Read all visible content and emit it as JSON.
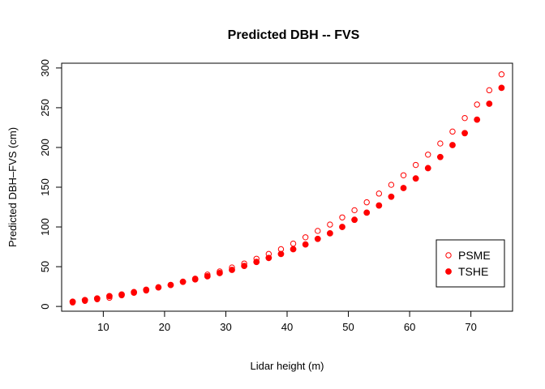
{
  "chart_data": {
    "type": "scatter",
    "title": "Predicted DBH -- FVS",
    "xlabel": "Lidar height (m)",
    "ylabel": "Predicted DBH–FVS (cm)",
    "xlim": [
      3.2,
      76.8
    ],
    "ylim": [
      -6,
      306
    ],
    "xticks": [
      10,
      20,
      30,
      40,
      50,
      60,
      70
    ],
    "yticks": [
      0,
      50,
      100,
      150,
      200,
      250,
      300
    ],
    "grid": false,
    "legend_position": "bottom-right",
    "series": [
      {
        "name": "PSME",
        "marker": "open-circle",
        "color": "#ff0000",
        "x": [
          5,
          7,
          9,
          11,
          13,
          15,
          17,
          19,
          21,
          23,
          25,
          27,
          29,
          31,
          33,
          35,
          37,
          39,
          41,
          43,
          45,
          47,
          49,
          51,
          53,
          55,
          57,
          59,
          61,
          63,
          65,
          67,
          69,
          71,
          73,
          75
        ],
        "y": [
          5,
          7,
          9,
          11,
          14,
          17,
          20,
          24,
          27,
          31,
          35,
          40,
          44,
          49,
          54,
          60,
          66,
          72,
          79,
          87,
          95,
          103,
          112,
          121,
          131,
          142,
          153,
          165,
          178,
          191,
          205,
          220,
          237,
          254,
          272,
          292
        ]
      },
      {
        "name": "TSHE",
        "marker": "filled-circle",
        "color": "#ff0000",
        "x": [
          5,
          7,
          9,
          11,
          13,
          15,
          17,
          19,
          21,
          23,
          25,
          27,
          29,
          31,
          33,
          35,
          37,
          39,
          41,
          43,
          45,
          47,
          49,
          51,
          53,
          55,
          57,
          59,
          61,
          63,
          65,
          67,
          69,
          71,
          73,
          75
        ],
        "y": [
          6,
          8,
          10,
          13,
          15,
          18,
          21,
          24,
          27,
          31,
          34,
          38,
          42,
          46,
          51,
          56,
          61,
          66,
          72,
          78,
          85,
          92,
          100,
          109,
          118,
          127,
          138,
          149,
          161,
          174,
          188,
          203,
          218,
          235,
          255,
          275
        ]
      }
    ]
  }
}
